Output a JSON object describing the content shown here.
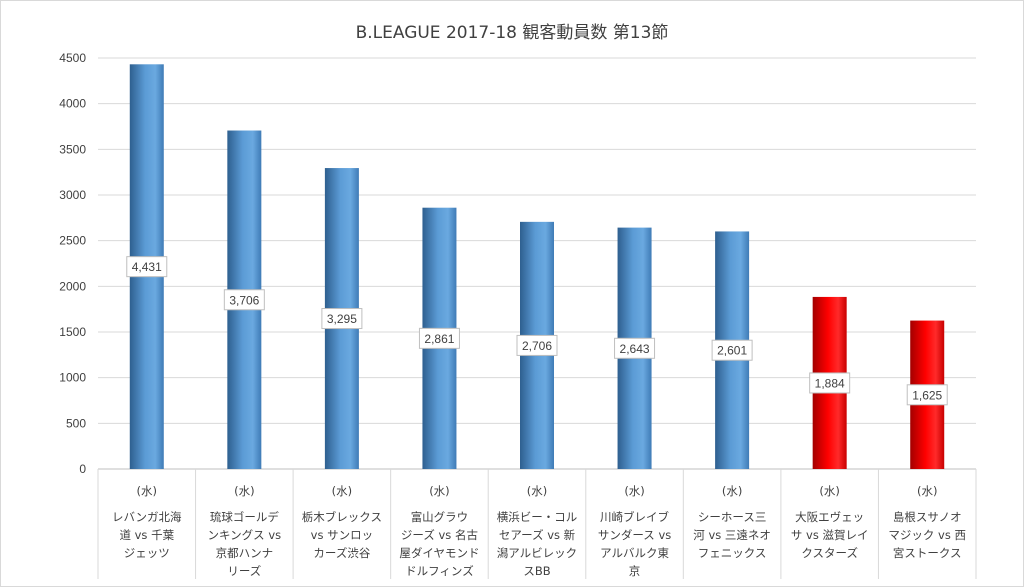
{
  "chart_data": {
    "type": "bar",
    "title": "B.LEAGUE 2017-18 観客動員数 第13節",
    "xlabel": "",
    "ylabel": "",
    "ylim": [
      0,
      4500
    ],
    "yticks": [
      0,
      500,
      1000,
      1500,
      2000,
      2500,
      3000,
      3500,
      4000,
      4500
    ],
    "grid": true,
    "legend": "none",
    "colors": {
      "blue": "#5b9bd5",
      "red": "#ff0000"
    },
    "categories": [
      {
        "day": "(水)",
        "lines": [
          "レバンガ北海",
          "道 vs 千葉",
          "ジェッツ"
        ],
        "value": 4431,
        "label": "4,431",
        "color": "blue"
      },
      {
        "day": "(水)",
        "lines": [
          "琉球ゴールデ",
          "ンキングス vs",
          "京都ハンナ",
          "リーズ"
        ],
        "value": 3706,
        "label": "3,706",
        "color": "blue"
      },
      {
        "day": "(水)",
        "lines": [
          "栃木ブレックス",
          "vs サンロッ",
          "カーズ渋谷"
        ],
        "value": 3295,
        "label": "3,295",
        "color": "blue"
      },
      {
        "day": "(水)",
        "lines": [
          "富山グラウ",
          "ジーズ vs 名古",
          "屋ダイヤモンド",
          "ドルフィンズ"
        ],
        "value": 2861,
        "label": "2,861",
        "color": "blue"
      },
      {
        "day": "(水)",
        "lines": [
          "横浜ビー・コル",
          "セアーズ vs 新",
          "潟アルビレック",
          "スBB"
        ],
        "value": 2706,
        "label": "2,706",
        "color": "blue"
      },
      {
        "day": "(水)",
        "lines": [
          "川崎ブレイブ",
          "サンダース vs",
          "アルバルク東",
          "京"
        ],
        "value": 2643,
        "label": "2,643",
        "color": "blue"
      },
      {
        "day": "(水)",
        "lines": [
          "シーホース三",
          "河 vs 三遠ネオ",
          "フェニックス"
        ],
        "value": 2601,
        "label": "2,601",
        "color": "blue"
      },
      {
        "day": "(水)",
        "lines": [
          "大阪エヴェッ",
          "サ vs 滋賀レイ",
          "クスターズ"
        ],
        "value": 1884,
        "label": "1,884",
        "color": "red"
      },
      {
        "day": "(水)",
        "lines": [
          "島根スサノオ",
          "マジック vs 西",
          "宮ストークス"
        ],
        "value": 1625,
        "label": "1,625",
        "color": "red"
      }
    ]
  }
}
